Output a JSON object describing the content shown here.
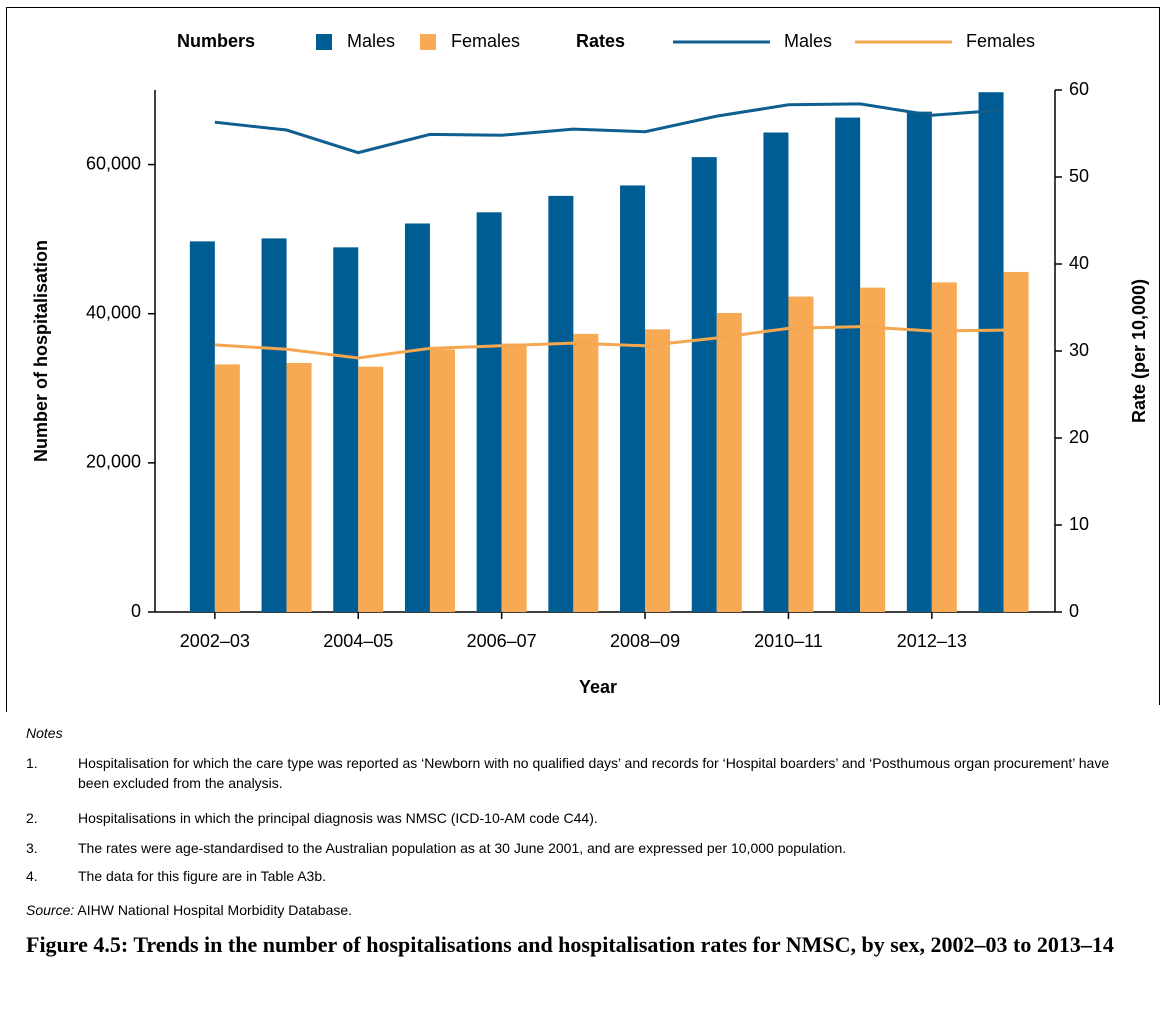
{
  "chart_data": {
    "type": "bar",
    "legend_titles": [
      "Numbers",
      "Rates"
    ],
    "x_label": "Year",
    "y_label": "Number of hospitalisation",
    "y2_label": "Rate (per 10,000)",
    "categories": [
      "2002–03",
      null,
      "2004–05",
      null,
      "2006–07",
      null,
      "2008–09",
      null,
      "2010–11",
      null,
      "2012–13",
      null
    ],
    "series": [
      {
        "name": "Males",
        "type": "bar",
        "color": "#005d93",
        "values": [
          49700,
          50100,
          48900,
          52100,
          53600,
          55800,
          57200,
          61000,
          64300,
          66300,
          67100,
          69700
        ]
      },
      {
        "name": "Females",
        "type": "bar",
        "color": "#f7a954",
        "values": [
          33200,
          33400,
          32900,
          35200,
          36000,
          37300,
          37900,
          40100,
          42300,
          43500,
          44200,
          45600
        ]
      },
      {
        "name": "Males",
        "type": "line",
        "axis": "y2",
        "color": "#0e5e8f",
        "values": [
          56.3,
          55.4,
          52.8,
          54.9,
          54.8,
          55.5,
          55.2,
          57.0,
          58.3,
          58.4,
          57.1,
          57.7
        ]
      },
      {
        "name": "Females",
        "type": "line",
        "axis": "y2",
        "color": "#f5a650",
        "values": [
          30.7,
          30.2,
          29.2,
          30.3,
          30.6,
          30.9,
          30.6,
          31.5,
          32.6,
          32.8,
          32.3,
          32.4
        ]
      }
    ],
    "ylim": [
      0,
      70000
    ],
    "yticks": [
      0,
      {
        "value": 20000,
        "label": "20,000"
      },
      {
        "value": 40000,
        "label": "40,000"
      },
      {
        "value": 60000,
        "label": "60,000"
      }
    ],
    "y2lim": [
      0,
      60
    ],
    "y2ticks": [
      0,
      10,
      20,
      30,
      40,
      50,
      60
    ]
  },
  "notes": {
    "heading": "Notes",
    "items": [
      {
        "number": "1.",
        "text": "Hospitalisation for which the care type was reported as ‘Newborn with no qualified days’ and records for ‘Hospital boarders’ and ‘Posthumous organ procurement’ have been excluded from the analysis."
      },
      {
        "number": "2.",
        "text": "Hospitalisations in which the principal diagnosis was NMSC (ICD-10-AM code C44)."
      },
      {
        "number": "3.",
        "text": "The rates were age-standardised to the Australian population as at 30 June 2001, and are expressed per 10,000 population."
      },
      {
        "number": "4.",
        "text": "The data for this figure are in Table A3b."
      }
    ],
    "source_label": "Source:",
    "source": "AIHW National Hospital Morbidity Database."
  },
  "figure_caption": "Figure 4.5: Trends in the number of hospitalisations and hospitalisation rates for NMSC, by sex, 2002–03 to 2013–14"
}
